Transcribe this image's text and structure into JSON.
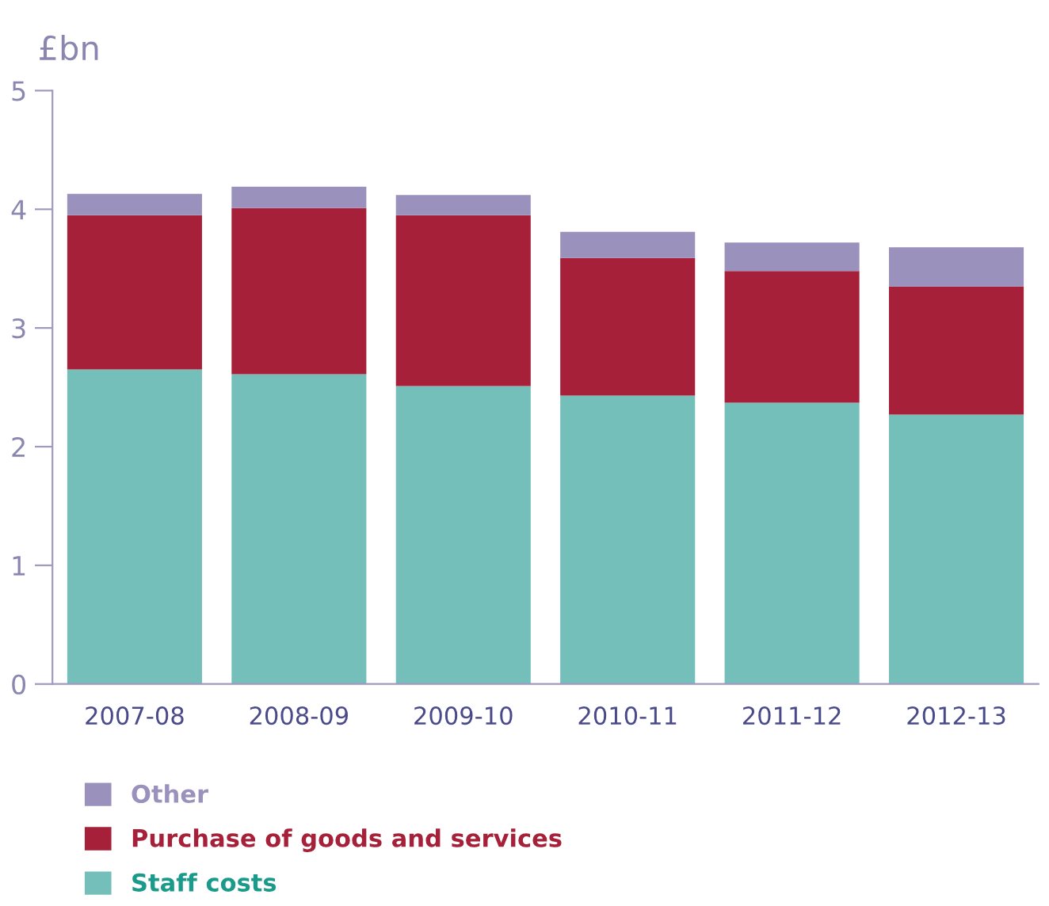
{
  "chart_data": {
    "type": "bar",
    "stacked": true,
    "ylabel": "£bn",
    "categories": [
      "2007-08",
      "2008-09",
      "2009-10",
      "2010-11",
      "2011-12",
      "2012-13"
    ],
    "series": [
      {
        "name": "Staff costs",
        "color": "#74bfba",
        "values": [
          2.65,
          2.61,
          2.51,
          2.43,
          2.37,
          2.27
        ]
      },
      {
        "name": "Purchase of goods and services",
        "color": "#a52038",
        "values": [
          1.3,
          1.4,
          1.44,
          1.16,
          1.11,
          1.08
        ]
      },
      {
        "name": "Other",
        "color": "#9a91bd",
        "values": [
          0.18,
          0.18,
          0.17,
          0.22,
          0.24,
          0.33
        ]
      }
    ],
    "ylim": [
      0,
      5
    ],
    "yticks": [
      0,
      1,
      2,
      3,
      4,
      5
    ],
    "grid": false,
    "legend": "bottom"
  }
}
